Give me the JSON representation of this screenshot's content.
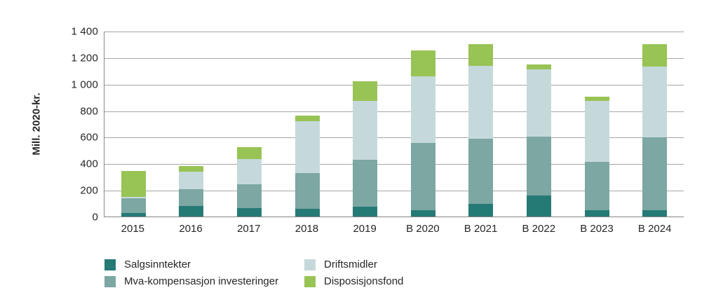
{
  "chart_data": {
    "type": "bar",
    "subtype": "stacked-vertical",
    "title": "",
    "xlabel": "",
    "ylabel": "Mill. 2020-kr.",
    "ylim": [
      0,
      1400
    ],
    "grid": true,
    "legend_position": "bottom",
    "yticks": [
      {
        "value": 0,
        "label": "0"
      },
      {
        "value": 200,
        "label": "200"
      },
      {
        "value": 400,
        "label": "400"
      },
      {
        "value": 600,
        "label": "600"
      },
      {
        "value": 800,
        "label": "800"
      },
      {
        "value": 1000,
        "label": "1 000"
      },
      {
        "value": 1200,
        "label": "1 200"
      },
      {
        "value": 1400,
        "label": "1 400"
      }
    ],
    "categories": [
      "2015",
      "2016",
      "2017",
      "2018",
      "2019",
      "B 2020",
      "B 2021",
      "B 2022",
      "B 2023",
      "B 2024"
    ],
    "series": [
      {
        "name": "Salgsinntekter",
        "color": "#257a76",
        "values": [
          25,
          80,
          65,
          60,
          75,
          50,
          95,
          160,
          50,
          50
        ]
      },
      {
        "name": "Mva-kompensasjon investeringer",
        "color": "#7ca7a3",
        "values": [
          115,
          125,
          180,
          270,
          355,
          505,
          490,
          440,
          360,
          545
        ]
      },
      {
        "name": "Driftsmidler",
        "color": "#c5d9db",
        "values": [
          10,
          135,
          190,
          390,
          440,
          500,
          550,
          510,
          460,
          535
        ]
      },
      {
        "name": "Disposisjonsfond",
        "color": "#98c355",
        "values": [
          195,
          40,
          90,
          40,
          150,
          195,
          165,
          35,
          35,
          170
        ]
      }
    ],
    "totals": [
      345,
      380,
      525,
      760,
      1020,
      1250,
      1300,
      1145,
      905,
      1300
    ],
    "legend_columns": [
      [
        "Salgsinntekter",
        "Mva-kompensasjon investeringer"
      ],
      [
        "Driftsmidler",
        "Disposisjonsfond"
      ]
    ]
  },
  "colors": {
    "gridline": "#a6a6a6",
    "axis_line": "#868686",
    "text": "#262626",
    "background": "#ffffff"
  }
}
